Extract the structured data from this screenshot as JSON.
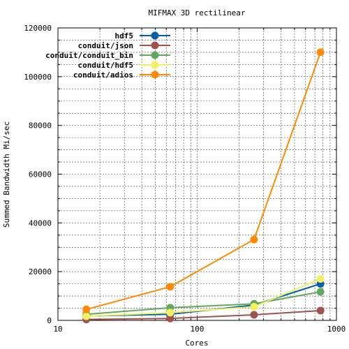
{
  "chart_data": {
    "type": "line",
    "title": "MIFMAX 3D rectilinear",
    "xlabel": "Cores",
    "ylabel": "Summed Bandwidth Mi/sec",
    "x_scale": "log",
    "xlim": [
      10,
      1000
    ],
    "ylim": [
      0,
      120000
    ],
    "x_ticks": [
      10,
      100,
      1000
    ],
    "x_tick_labels": [
      "10",
      "100",
      "1000"
    ],
    "y_ticks": [
      0,
      20000,
      40000,
      60000,
      80000,
      100000,
      120000
    ],
    "y_tick_labels": [
      "0",
      "20000",
      "40000",
      "60000",
      "80000",
      "100000",
      "120000"
    ],
    "grid": true,
    "legend_position": "top-left",
    "x": [
      16,
      64,
      256,
      768
    ],
    "series": [
      {
        "name": "hdf5",
        "color": "#0060ad",
        "values": [
          1800,
          2500,
          6300,
          15000
        ]
      },
      {
        "name": "conduit/json",
        "color": "#a0534d",
        "values": [
          400,
          800,
          2300,
          4000
        ]
      },
      {
        "name": "conduit/conduit_bin",
        "color": "#62a85e",
        "values": [
          2500,
          5200,
          6800,
          11700
        ]
      },
      {
        "name": "conduit/hdf5",
        "color": "#f0f060",
        "values": [
          1700,
          3200,
          5600,
          17000
        ]
      },
      {
        "name": "conduit/adios",
        "color": "#ff8a00",
        "values": [
          4500,
          13800,
          33200,
          110000
        ]
      }
    ]
  }
}
